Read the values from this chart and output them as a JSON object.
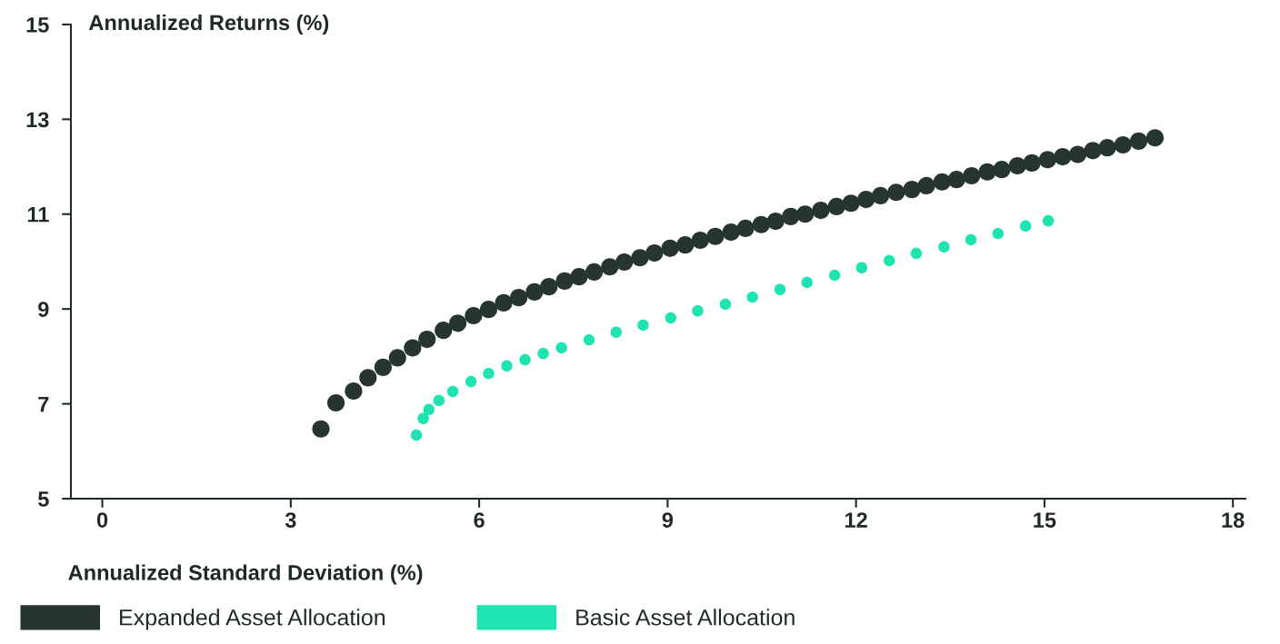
{
  "chart_data": {
    "type": "scatter",
    "xlabel": "Annualized Standard Deviation (%)",
    "ylabel": "Annualized Returns (%)",
    "xlim": [
      -0.5,
      18.2
    ],
    "ylim": [
      5,
      15
    ],
    "xticks": [
      0,
      3,
      6,
      9,
      12,
      15,
      18
    ],
    "yticks": [
      5,
      7,
      9,
      11,
      13,
      15
    ],
    "grid": false,
    "legend": "bottom left",
    "marker": "circle",
    "series": [
      {
        "name": "Expanded Asset Allocation",
        "color": "#26352d",
        "x": [
          3.48,
          3.72,
          4.0,
          4.23,
          4.47,
          4.7,
          4.94,
          5.17,
          5.43,
          5.66,
          5.91,
          6.15,
          6.39,
          6.63,
          6.88,
          7.11,
          7.36,
          7.59,
          7.83,
          8.08,
          8.31,
          8.56,
          8.79,
          9.04,
          9.28,
          9.52,
          9.76,
          10.01,
          10.24,
          10.49,
          10.72,
          10.96,
          11.19,
          11.44,
          11.69,
          11.92,
          12.16,
          12.39,
          12.64,
          12.89,
          13.12,
          13.37,
          13.6,
          13.84,
          14.09,
          14.32,
          14.57,
          14.8,
          15.05,
          15.29,
          15.53,
          15.77,
          16.0,
          16.25,
          16.5,
          16.76
        ],
        "values": [
          6.47,
          7.02,
          7.27,
          7.55,
          7.77,
          7.97,
          8.18,
          8.36,
          8.55,
          8.7,
          8.86,
          8.99,
          9.13,
          9.24,
          9.36,
          9.47,
          9.59,
          9.68,
          9.78,
          9.89,
          9.99,
          10.08,
          10.18,
          10.28,
          10.35,
          10.45,
          10.53,
          10.62,
          10.7,
          10.78,
          10.85,
          10.95,
          11.0,
          11.08,
          11.16,
          11.23,
          11.31,
          11.39,
          11.46,
          11.52,
          11.6,
          11.68,
          11.73,
          11.81,
          11.89,
          11.94,
          12.02,
          12.08,
          12.15,
          12.21,
          12.26,
          12.34,
          12.4,
          12.46,
          12.54,
          12.61
        ]
      },
      {
        "name": "Basic Asset Allocation",
        "color": "#1fe3b0",
        "x": [
          5.0,
          5.11,
          5.2,
          5.36,
          5.58,
          5.87,
          6.15,
          6.44,
          6.73,
          7.02,
          7.31,
          7.75,
          8.18,
          8.61,
          9.05,
          9.48,
          9.92,
          10.35,
          10.79,
          11.22,
          11.66,
          12.09,
          12.53,
          12.96,
          13.4,
          13.83,
          14.26,
          14.7,
          15.06
        ],
        "values": [
          6.34,
          6.69,
          6.88,
          7.07,
          7.26,
          7.47,
          7.64,
          7.8,
          7.93,
          8.06,
          8.18,
          8.35,
          8.51,
          8.66,
          8.81,
          8.96,
          9.1,
          9.25,
          9.41,
          9.56,
          9.71,
          9.87,
          10.02,
          10.17,
          10.31,
          10.46,
          10.59,
          10.75,
          10.86
        ]
      }
    ]
  }
}
